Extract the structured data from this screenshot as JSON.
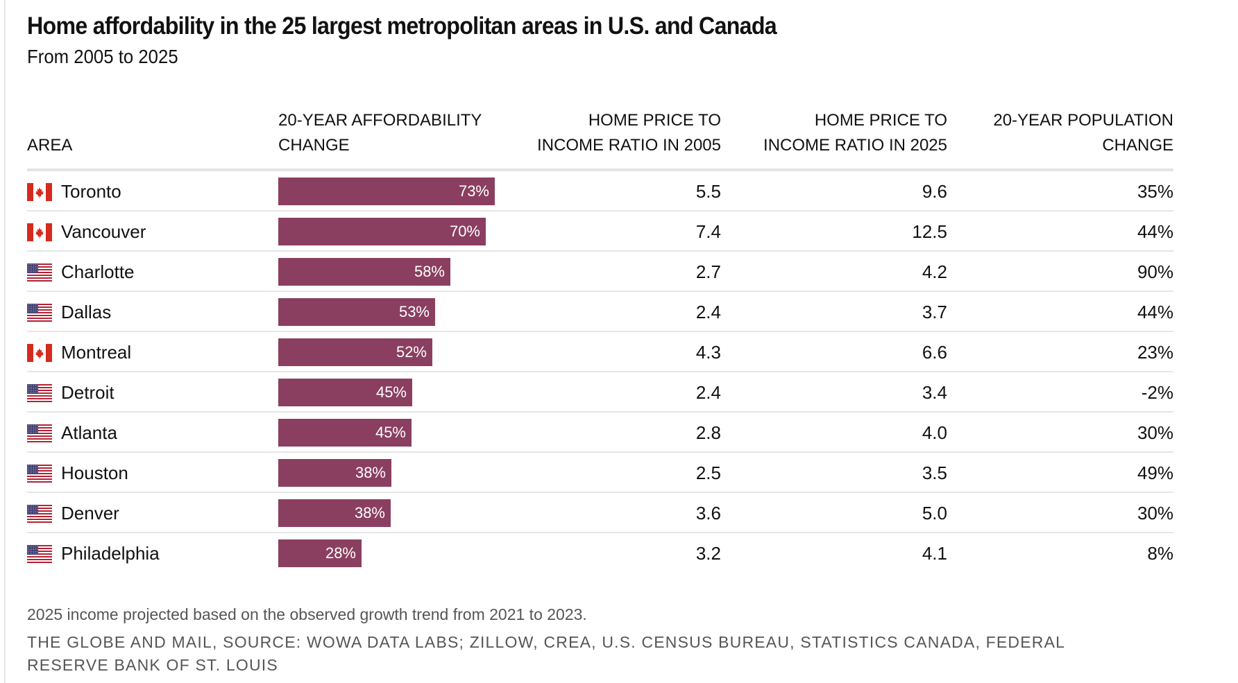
{
  "title": "Home affordability in the 25 largest metropolitan areas in U.S. and Canada",
  "subtitle": "From 2005 to 2025",
  "columns": {
    "area": "AREA",
    "affordability_line1": "20-YEAR AFFORDABILITY",
    "affordability_line2": "CHANGE",
    "ratio2005_line1": "HOME PRICE TO",
    "ratio2005_line2": "INCOME RATIO IN 2005",
    "ratio2025_line1": "HOME PRICE TO",
    "ratio2025_line2": "INCOME RATIO IN 2025",
    "population_line1": "20-YEAR POPULATION",
    "population_line2": "CHANGE"
  },
  "colors": {
    "bar": "#8a3f60",
    "canada_red": "#d52b1e",
    "us_red": "#b22234",
    "us_blue": "#3c3b6e"
  },
  "chart_data": {
    "type": "table",
    "title": "Home affordability in the 25 largest metropolitan areas in U.S. and Canada",
    "subtitle": "From 2005 to 2025",
    "bar_column": "20-YEAR AFFORDABILITY CHANGE",
    "bar_scale_max_percent": 100,
    "rows": [
      {
        "area": "Toronto",
        "country": "Canada",
        "affordability_change": 73,
        "affordability_label": "73%",
        "ratio_2005": "5.5",
        "ratio_2025": "9.6",
        "population_change": "35%"
      },
      {
        "area": "Vancouver",
        "country": "Canada",
        "affordability_change": 70,
        "affordability_label": "70%",
        "ratio_2005": "7.4",
        "ratio_2025": "12.5",
        "population_change": "44%"
      },
      {
        "area": "Charlotte",
        "country": "US",
        "affordability_change": 58,
        "affordability_label": "58%",
        "ratio_2005": "2.7",
        "ratio_2025": "4.2",
        "population_change": "90%"
      },
      {
        "area": "Dallas",
        "country": "US",
        "affordability_change": 53,
        "affordability_label": "53%",
        "ratio_2005": "2.4",
        "ratio_2025": "3.7",
        "population_change": "44%"
      },
      {
        "area": "Montreal",
        "country": "Canada",
        "affordability_change": 52,
        "affordability_label": "52%",
        "ratio_2005": "4.3",
        "ratio_2025": "6.6",
        "population_change": "23%"
      },
      {
        "area": "Detroit",
        "country": "US",
        "affordability_change": 45.3,
        "affordability_label": "45%",
        "ratio_2005": "2.4",
        "ratio_2025": "3.4",
        "population_change": "-2%"
      },
      {
        "area": "Atlanta",
        "country": "US",
        "affordability_change": 45.0,
        "affordability_label": "45%",
        "ratio_2005": "2.8",
        "ratio_2025": "4.0",
        "population_change": "30%"
      },
      {
        "area": "Houston",
        "country": "US",
        "affordability_change": 38.2,
        "affordability_label": "38%",
        "ratio_2005": "2.5",
        "ratio_2025": "3.5",
        "population_change": "49%"
      },
      {
        "area": "Denver",
        "country": "US",
        "affordability_change": 37.9,
        "affordability_label": "38%",
        "ratio_2005": "3.6",
        "ratio_2025": "5.0",
        "population_change": "30%"
      },
      {
        "area": "Philadelphia",
        "country": "US",
        "affordability_change": 28,
        "affordability_label": "28%",
        "ratio_2005": "3.2",
        "ratio_2025": "4.1",
        "population_change": "8%"
      }
    ]
  },
  "footer": {
    "note": "2025 income projected based on the observed growth trend from 2021 to 2023.",
    "source": "THE GLOBE AND MAIL, SOURCE: WOWA DATA LABS; ZILLOW, CREA, U.S. CENSUS BUREAU, STATISTICS CANADA, FEDERAL RESERVE BANK OF ST. LOUIS"
  }
}
